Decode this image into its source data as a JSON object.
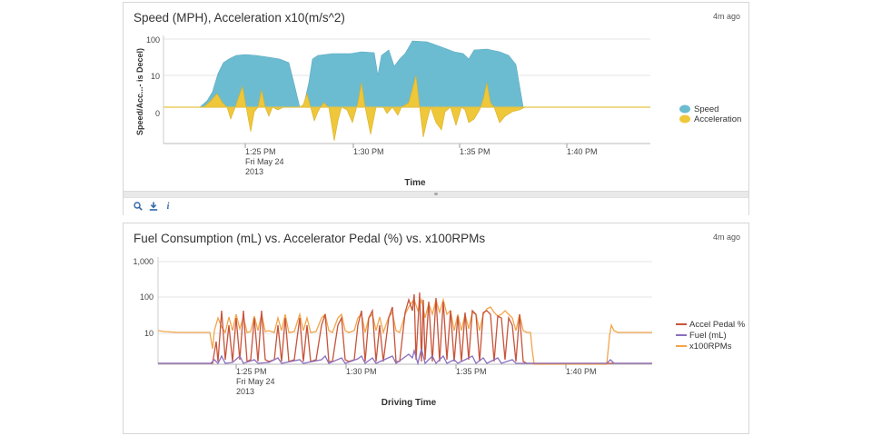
{
  "panel1": {
    "title": "Speed (MPH), Acceleration x10(m/s^2)",
    "age": "4m ago",
    "chart": {
      "y_ticks": [
        "100",
        "10",
        "0"
      ],
      "x_ticks": [
        "1:25 PM",
        "1:30 PM",
        "1:35 PM",
        "1:40 PM"
      ],
      "date_line1": "Fri May 24",
      "date_line2": "2013",
      "ylabel": "Speed/Acc...- is Decel)",
      "xlabel": "Time",
      "legend": [
        {
          "name": "Speed",
          "color": "#6cbcd1"
        },
        {
          "name": "Acceleration",
          "color": "#efc73a"
        }
      ]
    },
    "toolbar": {
      "icons": [
        "search-icon",
        "download-icon",
        "info-icon"
      ]
    }
  },
  "panel2": {
    "title": "Fuel Consumption (mL) vs. Accelerator Pedal (%) vs. x100RPMs",
    "age": "4m ago",
    "chart": {
      "y_ticks": [
        "1,000",
        "100",
        "10"
      ],
      "x_ticks": [
        "1:25 PM",
        "1:30 PM",
        "1:35 PM",
        "1:40 PM"
      ],
      "date_line1": "Fri May 24",
      "date_line2": "2013",
      "xlabel": "Driving Time",
      "legend": [
        {
          "name": "Accel Pedal %",
          "color": "#c8533a"
        },
        {
          "name": "Fuel (mL)",
          "color": "#8a6fc0"
        },
        {
          "name": "x100RPMs",
          "color": "#f2a54a"
        }
      ]
    }
  }
}
